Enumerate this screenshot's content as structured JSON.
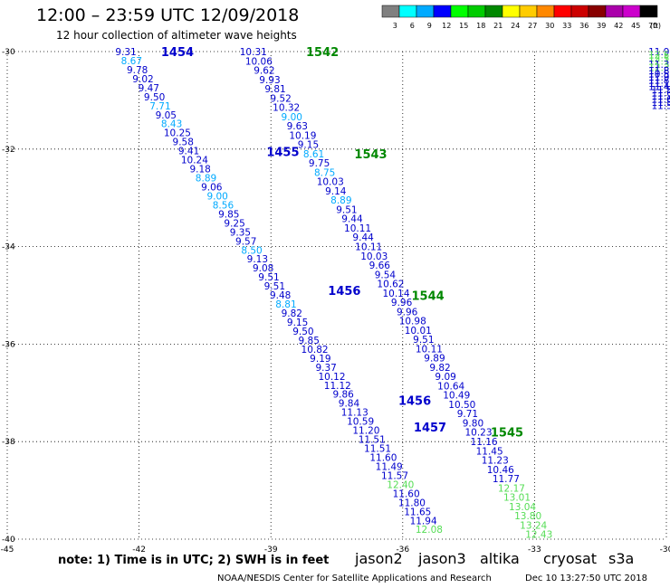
{
  "header": {
    "title": "12:00 – 23:59 UTC 12/09/2018",
    "subtitle": "12 hour collection of altimeter wave heights"
  },
  "legend": {
    "unit": "(ft)",
    "bins": [
      {
        "label": "3",
        "color": "#808080"
      },
      {
        "label": "6",
        "color": "#00ffff"
      },
      {
        "label": "9",
        "color": "#00aaff"
      },
      {
        "label": "12",
        "color": "#0000ff"
      },
      {
        "label": "15",
        "color": "#00ff00"
      },
      {
        "label": "18",
        "color": "#00cc00"
      },
      {
        "label": "21",
        "color": "#008800"
      },
      {
        "label": "24",
        "color": "#ffff00"
      },
      {
        "label": "27",
        "color": "#ffcc00"
      },
      {
        "label": "30",
        "color": "#ff8800"
      },
      {
        "label": "33",
        "color": "#ff0000"
      },
      {
        "label": "36",
        "color": "#cc0000"
      },
      {
        "label": "39",
        "color": "#880000"
      },
      {
        "label": "42",
        "color": "#aa00aa"
      },
      {
        "label": "45",
        "color": "#cc00cc"
      },
      {
        "label": "70",
        "color": "#000000"
      }
    ]
  },
  "footer": {
    "note": "note:  1) Time is in UTC; 2) SWH is in feet",
    "credit": "NOAA/NESDIS Center for Satellite Applications and Research",
    "date": "Dec 10 13:27:50 UTC 2018",
    "satellites": [
      {
        "name": "jason2",
        "color": "#0000cc"
      },
      {
        "name": "jason3",
        "color": "#008800"
      },
      {
        "name": "altika",
        "color": "#ff9900"
      },
      {
        "name": "cryosat",
        "color": "#ff0000"
      },
      {
        "name": "s3a",
        "color": "#880000"
      }
    ]
  },
  "chart_data": {
    "type": "scatter",
    "xlim": [
      -45,
      -30
    ],
    "ylim": [
      -40,
      -30
    ],
    "x_ticks": [
      "-45",
      "-42",
      "-39",
      "-36",
      "-33",
      "-30"
    ],
    "y_ticks": [
      "-30",
      "-32",
      "-34",
      "-36",
      "-38",
      "-40"
    ],
    "grid": true,
    "tracks": [
      {
        "pass_labels": [
          {
            "text": "1454",
            "color": "#0000cc",
            "x": -41.5,
            "y": -30.0
          },
          {
            "text": "1455",
            "color": "#0000cc",
            "x": -39.1,
            "y": -32.05
          },
          {
            "text": "1456",
            "color": "#0000cc",
            "x": -37.7,
            "y": -34.9
          },
          {
            "text": "1456",
            "color": "#0000cc",
            "x": -36.1,
            "y": -37.15
          },
          {
            "text": "1457",
            "color": "#0000cc",
            "x": -35.75,
            "y": -37.7
          }
        ],
        "x_start": -42.3,
        "y_start": -30.0,
        "x_end": -35.4,
        "y_end": -39.8,
        "values": [
          "9.31",
          "8.67",
          "9.78",
          "9.02",
          "9.47",
          "9.50",
          "7.71",
          "9.05",
          "8.43",
          "10.25",
          "9.58",
          "9.41",
          "10.24",
          "9.18",
          "8.89",
          "9.06",
          "9.00",
          "8.56",
          "9.85",
          "9.25",
          "9.35",
          "9.57",
          "8.50",
          "9.13",
          "9.08",
          "9.51",
          "9.51",
          "9.48",
          "8.81",
          "9.82",
          "9.15",
          "9.50",
          "9.85",
          "10.82",
          "9.19",
          "9.37",
          "10.12",
          "11.12",
          "9.86",
          "9.84",
          "11.13",
          "10.59",
          "11.20",
          "11.51",
          "11.51",
          "11.60",
          "11.49",
          "11.57",
          "12.40",
          "11.60",
          "11.80",
          "11.65",
          "11.94",
          "12.08"
        ],
        "colors": [
          "#0000cc",
          "#00aaff",
          "#0000cc",
          "#0000cc",
          "#0000cc",
          "#0000cc",
          "#00aaff",
          "#0000cc",
          "#00aaff",
          "#0000cc",
          "#0000cc",
          "#0000cc",
          "#0000cc",
          "#0000cc",
          "#00aaff",
          "#0000cc",
          "#00aaff",
          "#00aaff",
          "#0000cc",
          "#0000cc",
          "#0000cc",
          "#0000cc",
          "#00aaff",
          "#0000cc",
          "#0000cc",
          "#0000cc",
          "#0000cc",
          "#0000cc",
          "#00aaff",
          "#0000cc",
          "#0000cc",
          "#0000cc",
          "#0000cc",
          "#0000cc",
          "#0000cc",
          "#0000cc",
          "#0000cc",
          "#0000cc",
          "#0000cc",
          "#0000cc",
          "#0000cc",
          "#0000cc",
          "#0000cc",
          "#0000cc",
          "#0000cc",
          "#0000cc",
          "#0000cc",
          "#0000cc",
          "#55dd55",
          "#0000cc",
          "#0000cc",
          "#0000cc",
          "#0000cc",
          "#55dd55"
        ]
      },
      {
        "pass_labels": [
          {
            "text": "1542",
            "color": "#008800",
            "x": -38.2,
            "y": -30.0
          },
          {
            "text": "1543",
            "color": "#008800",
            "x": -37.1,
            "y": -32.1
          },
          {
            "text": "1544",
            "color": "#008800",
            "x": -35.8,
            "y": -35.0
          },
          {
            "text": "1545",
            "color": "#008800",
            "x": -34.0,
            "y": -37.8
          }
        ],
        "x_start": -39.4,
        "y_start": -30.0,
        "x_end": -32.9,
        "y_end": -39.9,
        "values": [
          "10.31",
          "10.06",
          "9.62",
          "9.93",
          "9.81",
          "9.52",
          "10.32",
          "9.00",
          "9.63",
          "10.19",
          "9.15",
          "8.61",
          "9.75",
          "8.75",
          "10.03",
          "9.14",
          "8.89",
          "9.51",
          "9.44",
          "10.11",
          "9.44",
          "10.11",
          "10.03",
          "9.66",
          "9.54",
          "10.62",
          "10.14",
          "9.96",
          "9.96",
          "10.98",
          "10.01",
          "9.51",
          "10.11",
          "9.89",
          "9.82",
          "9.09",
          "10.64",
          "10.49",
          "10.50",
          "9.71",
          "9.80",
          "10.23",
          "11.16",
          "11.45",
          "11.23",
          "10.46",
          "11.77",
          "12.17",
          "13.01",
          "13.04",
          "13.80",
          "13.24",
          "12.43"
        ],
        "colors": [
          "#0000cc",
          "#0000cc",
          "#0000cc",
          "#0000cc",
          "#0000cc",
          "#0000cc",
          "#0000cc",
          "#00aaff",
          "#0000cc",
          "#0000cc",
          "#0000cc",
          "#00aaff",
          "#0000cc",
          "#00aaff",
          "#0000cc",
          "#0000cc",
          "#00aaff",
          "#0000cc",
          "#0000cc",
          "#0000cc",
          "#0000cc",
          "#0000cc",
          "#0000cc",
          "#0000cc",
          "#0000cc",
          "#0000cc",
          "#0000cc",
          "#0000cc",
          "#0000cc",
          "#0000cc",
          "#0000cc",
          "#0000cc",
          "#0000cc",
          "#0000cc",
          "#0000cc",
          "#0000cc",
          "#0000cc",
          "#0000cc",
          "#0000cc",
          "#0000cc",
          "#0000cc",
          "#0000cc",
          "#0000cc",
          "#0000cc",
          "#0000cc",
          "#0000cc",
          "#0000cc",
          "#55dd55",
          "#55dd55",
          "#55dd55",
          "#55dd55",
          "#55dd55",
          "#55dd55"
        ]
      },
      {
        "pass_labels": [],
        "x_start": -30.1,
        "y_start": -30.0,
        "x_end": -30.1,
        "y_end": -31.1,
        "values": [
          "11.96",
          "12.58",
          "12.56",
          "12.14",
          "11.35",
          "12.39",
          "11.84",
          "10.50",
          "11.97",
          "11.86",
          "11.11",
          "11.49",
          "11.5",
          "11.6",
          "11.7",
          "11.6",
          "11.5",
          "11.5"
        ],
        "colors": [
          "#0000cc",
          "#55dd55",
          "#55dd55",
          "#55dd55",
          "#0000cc",
          "#55dd55",
          "#0000cc",
          "#0000cc",
          "#0000cc",
          "#0000cc",
          "#0000cc",
          "#0000cc",
          "#0000cc",
          "#0000cc",
          "#0000cc",
          "#0000cc",
          "#0000cc",
          "#0000cc"
        ]
      }
    ]
  }
}
